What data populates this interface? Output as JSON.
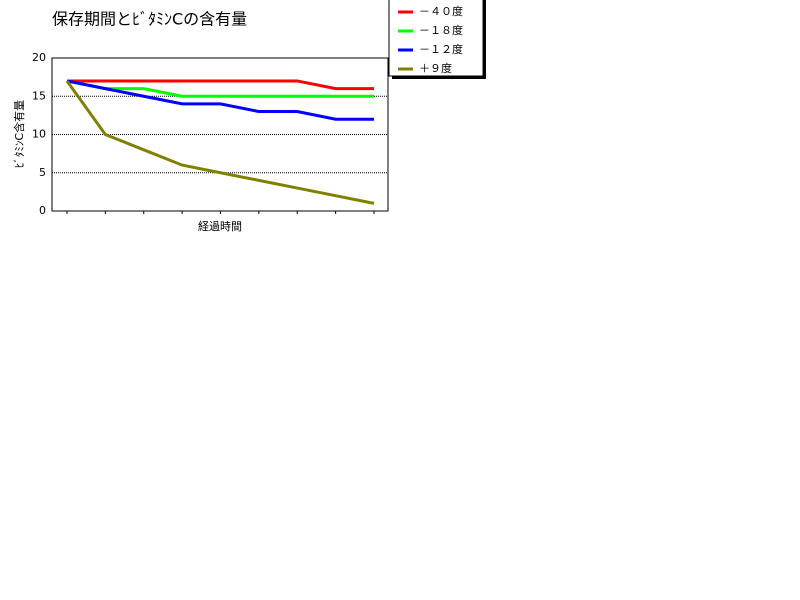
{
  "chart_data": {
    "type": "line",
    "title": "保存期間とﾋﾞﾀﾐﾝCの含有量",
    "x_label": "経過時間",
    "y_label": "ﾋﾞﾀﾐﾝC含有量",
    "categories": [
      null,
      null,
      null,
      null,
      null,
      null,
      null,
      null,
      null
    ],
    "series": [
      {
        "name": "－４０度",
        "color": "#ff0000",
        "values": [
          17,
          17,
          17,
          17,
          17,
          17,
          17,
          16,
          16
        ]
      },
      {
        "name": "－１８度",
        "color": "#00ff00",
        "values": [
          17,
          16,
          16,
          15,
          15,
          15,
          15,
          15,
          15
        ]
      },
      {
        "name": "－１２度",
        "color": "#0000ff",
        "values": [
          17,
          16,
          15,
          14,
          14,
          13,
          13,
          12,
          12
        ]
      },
      {
        "name": "＋９度",
        "color": "#808000",
        "values": [
          17,
          10,
          8,
          6,
          5,
          4,
          3,
          2,
          1
        ]
      }
    ],
    "ylim": [
      0,
      20
    ],
    "yticks": [
      0,
      5,
      10,
      15,
      20
    ],
    "grid": true
  }
}
